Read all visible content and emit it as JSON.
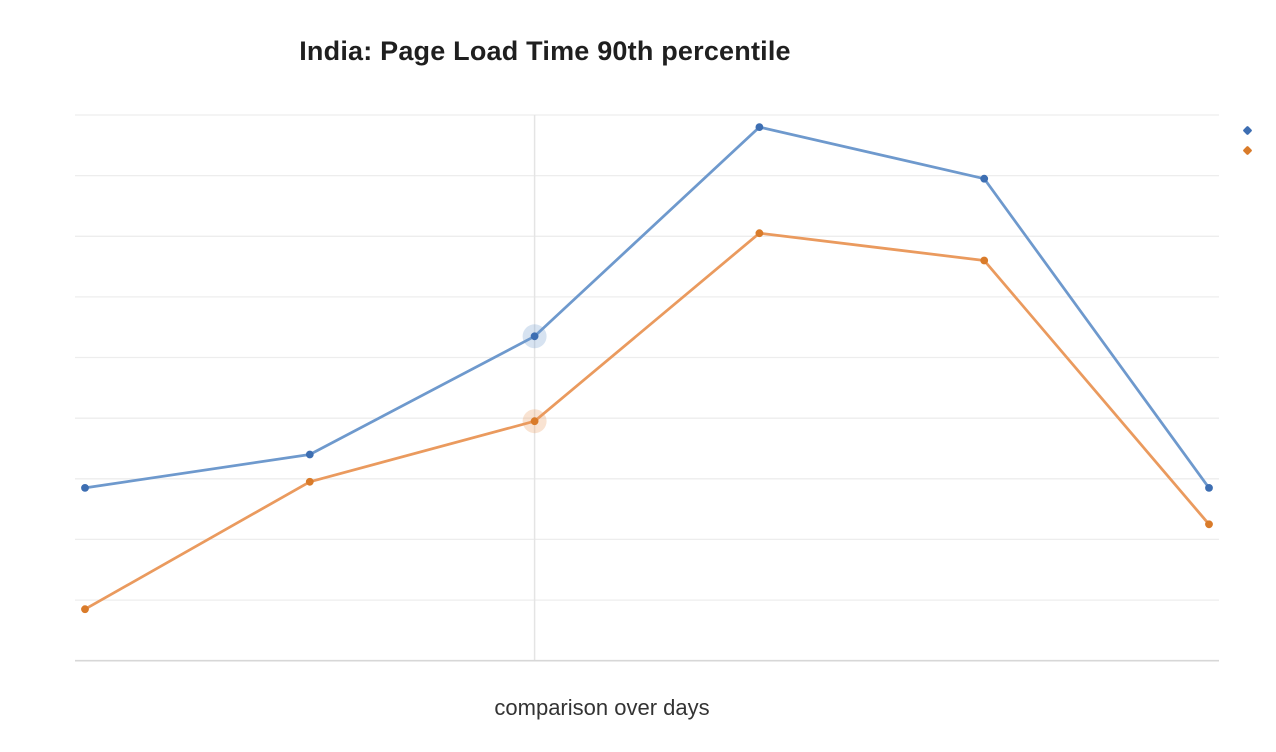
{
  "page": {
    "background_color": "#ffffff"
  },
  "chart_data": {
    "type": "line",
    "title": "India: Page Load Time 90th percentile",
    "xlabel": "comparison over days",
    "ylabel": "",
    "x": [
      1,
      2,
      3,
      4,
      5,
      6
    ],
    "x_tick_labels_visible": false,
    "y_tick_labels_visible": false,
    "ylim": [
      0,
      9
    ],
    "grid": "horizontal gridlines only, every 1 unit (9 lines), very light gray",
    "legend_position": "top-right, colored diamond markers only, no text labels visible",
    "series": [
      {
        "id": "series-1",
        "legend_label": "",
        "marker_color": "#3d6eb2",
        "line_color": "#6e99cd",
        "values": [
          2.85,
          3.4,
          5.35,
          8.8,
          7.95,
          2.85
        ]
      },
      {
        "id": "series-2",
        "legend_label": "",
        "marker_color": "#d97b2a",
        "line_color": "#ea9a5e",
        "values": [
          0.85,
          2.95,
          3.95,
          7.05,
          6.6,
          2.25
        ]
      }
    ],
    "highlight": {
      "point_index": 2,
      "style": "soft translucent halo on both series markers plus vertical crosshair gridline at that x position"
    }
  },
  "colors": {
    "grid": "#ededed",
    "axis": "#d7d7d7",
    "crosshair": "#e4e4e4",
    "title_text": "#1f1f1f",
    "axis_label_text": "#333333"
  }
}
